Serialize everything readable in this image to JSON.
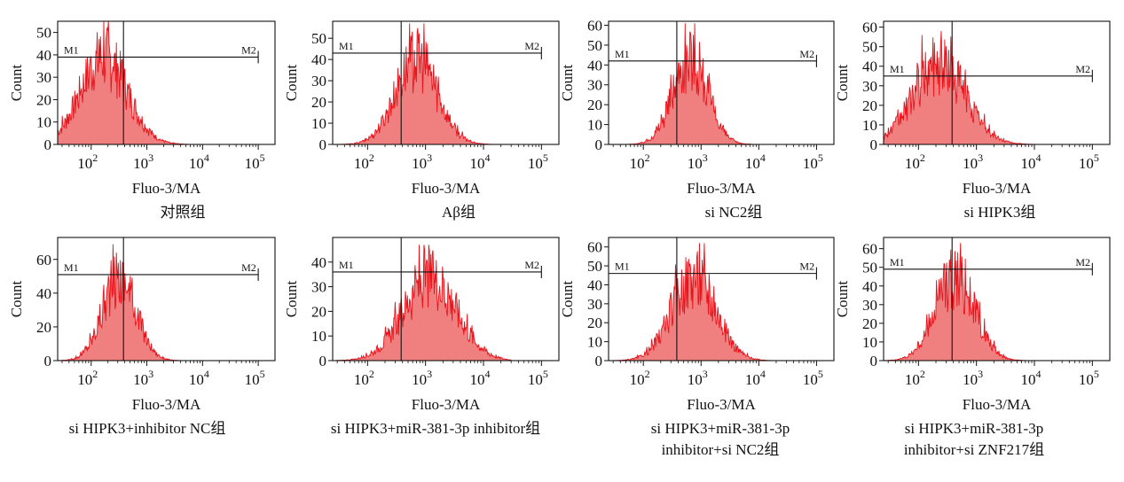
{
  "chart_data": [
    {
      "type": "area",
      "xlabel": "Fluo-3/MA",
      "ylabel": "Count",
      "xscale": "log",
      "xlim": [
        25,
        200000
      ],
      "ylim": [
        0,
        55
      ],
      "yticks": [
        "0",
        "10",
        "20",
        "30",
        "40",
        "50"
      ],
      "xticks": [
        "10",
        "2",
        "10",
        "3",
        "10",
        "4",
        "10",
        "5"
      ],
      "gate_labels": [
        "M1",
        "M2"
      ],
      "gate_x": 380,
      "gate_end": 100000,
      "gate_level": 39,
      "peak_x": 170,
      "peak_y": 55,
      "spread": 0.42,
      "caption": [
        "对照组"
      ]
    },
    {
      "type": "area",
      "xlabel": "Fluo-3/MA",
      "ylabel": "Count",
      "xscale": "log",
      "xlim": [
        25,
        200000
      ],
      "ylim": [
        0,
        58
      ],
      "yticks": [
        "0",
        "10",
        "20",
        "30",
        "40",
        "50"
      ],
      "xticks": [
        "10",
        "2",
        "10",
        "3",
        "10",
        "4",
        "10",
        "5"
      ],
      "gate_labels": [
        "M1",
        "M2"
      ],
      "gate_x": 380,
      "gate_end": 100000,
      "gate_level": 43,
      "peak_x": 700,
      "peak_y": 57,
      "spread": 0.36,
      "caption": [
        "Aβ组"
      ]
    },
    {
      "type": "area",
      "xlabel": "Fluo-3/MA",
      "ylabel": "Count",
      "xscale": "log",
      "xlim": [
        25,
        200000
      ],
      "ylim": [
        0,
        62
      ],
      "yticks": [
        "0",
        "10",
        "20",
        "30",
        "40",
        "50",
        "60"
      ],
      "xticks": [
        "10",
        "2",
        "10",
        "3",
        "10",
        "4",
        "10",
        "5"
      ],
      "gate_labels": [
        "M1",
        "M2"
      ],
      "gate_x": 380,
      "gate_end": 100000,
      "gate_level": 42,
      "peak_x": 650,
      "peak_y": 61,
      "spread": 0.3,
      "caption": [
        "si NC2组"
      ]
    },
    {
      "type": "area",
      "xlabel": "Fluo-3/MA",
      "ylabel": "Count",
      "xscale": "log",
      "xlim": [
        25,
        200000
      ],
      "ylim": [
        0,
        63
      ],
      "yticks": [
        "0",
        "10",
        "20",
        "30",
        "40",
        "50",
        "60"
      ],
      "xticks": [
        "10",
        "2",
        "10",
        "3",
        "10",
        "4",
        "10",
        "5"
      ],
      "gate_labels": [
        "M1",
        "M2"
      ],
      "gate_x": 380,
      "gate_end": 100000,
      "gate_level": 35,
      "peak_x": 230,
      "peak_y": 58,
      "spread": 0.45,
      "caption": [
        "si HIPK3组"
      ]
    },
    {
      "type": "area",
      "xlabel": "Fluo-3/MA",
      "ylabel": "Count",
      "xscale": "log",
      "xlim": [
        25,
        200000
      ],
      "ylim": [
        0,
        73
      ],
      "yticks": [
        "0",
        "20",
        "40",
        "60"
      ],
      "xticks": [
        "10",
        "2",
        "10",
        "3",
        "10",
        "4",
        "10",
        "5"
      ],
      "gate_labels": [
        "M1",
        "M2"
      ],
      "gate_x": 380,
      "gate_end": 100000,
      "gate_level": 51,
      "peak_x": 320,
      "peak_y": 69,
      "spread": 0.3,
      "caption": [
        "si HIPK3+inhibitor NC组"
      ]
    },
    {
      "type": "area",
      "xlabel": "Fluo-3/MA",
      "ylabel": "Count",
      "xscale": "log",
      "xlim": [
        25,
        200000
      ],
      "ylim": [
        0,
        50
      ],
      "yticks": [
        "0",
        "10",
        "20",
        "30",
        "40"
      ],
      "xticks": [
        "10",
        "2",
        "10",
        "3",
        "10",
        "4",
        "10",
        "5"
      ],
      "gate_labels": [
        "M1",
        "M2"
      ],
      "gate_x": 380,
      "gate_end": 100000,
      "gate_level": 36,
      "peak_x": 1200,
      "peak_y": 47,
      "spread": 0.46,
      "caption": [
        "si HIPK3+miR-381-3p inhibitor组"
      ]
    },
    {
      "type": "area",
      "xlabel": "Fluo-3/MA",
      "ylabel": "Count",
      "xscale": "log",
      "xlim": [
        25,
        200000
      ],
      "ylim": [
        0,
        65
      ],
      "yticks": [
        "0",
        "10",
        "20",
        "30",
        "40",
        "50",
        "60"
      ],
      "xticks": [
        "10",
        "2",
        "10",
        "3",
        "10",
        "4",
        "10",
        "5"
      ],
      "gate_labels": [
        "M1",
        "M2"
      ],
      "gate_x": 380,
      "gate_end": 100000,
      "gate_level": 46,
      "peak_x": 750,
      "peak_y": 62,
      "spread": 0.38,
      "caption": [
        "si HIPK3+miR-381-3p",
        "inhibitor+si NC2组"
      ]
    },
    {
      "type": "area",
      "xlabel": "Fluo-3/MA",
      "ylabel": "Count",
      "xscale": "log",
      "xlim": [
        25,
        200000
      ],
      "ylim": [
        0,
        66
      ],
      "yticks": [
        "0",
        "10",
        "20",
        "30",
        "40",
        "50",
        "60"
      ],
      "xticks": [
        "10",
        "2",
        "10",
        "3",
        "10",
        "4",
        "10",
        "5"
      ],
      "gate_labels": [
        "M1",
        "M2"
      ],
      "gate_x": 380,
      "gate_end": 100000,
      "gate_level": 49,
      "peak_x": 430,
      "peak_y": 63,
      "spread": 0.34,
      "caption": [
        "si HIPK3+miR-381-3p",
        "inhibitor+si ZNF217组"
      ]
    }
  ],
  "colors": {
    "fill": "#f07f7f",
    "line": "#e8131b",
    "axis": "#111111"
  }
}
